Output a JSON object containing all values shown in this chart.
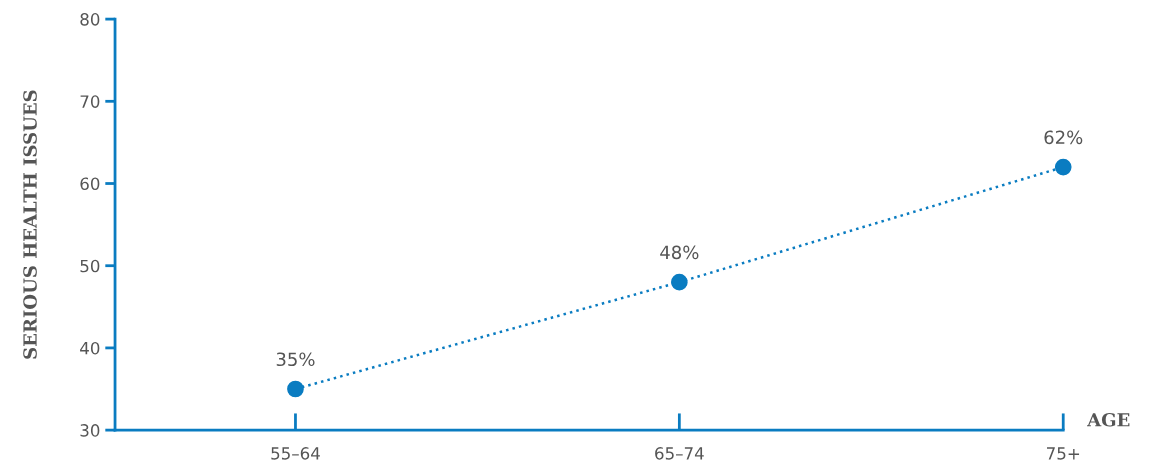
{
  "chart_data": {
    "type": "line",
    "xlabel": "AGE",
    "ylabel": "SERIOUS HEALTH ISSUES",
    "categories": [
      "55–64",
      "65–74",
      "75+"
    ],
    "series": [
      {
        "color": "#0a7cc1",
        "values": [
          35,
          48,
          62
        ],
        "value_labels": [
          "35%",
          "48%",
          "62%"
        ]
      }
    ],
    "ylim": [
      30,
      80
    ],
    "yticks": [
      30,
      40,
      50,
      60,
      70,
      80
    ],
    "grid": false,
    "legend": false,
    "marker": "circle",
    "line_style": "dotted"
  }
}
